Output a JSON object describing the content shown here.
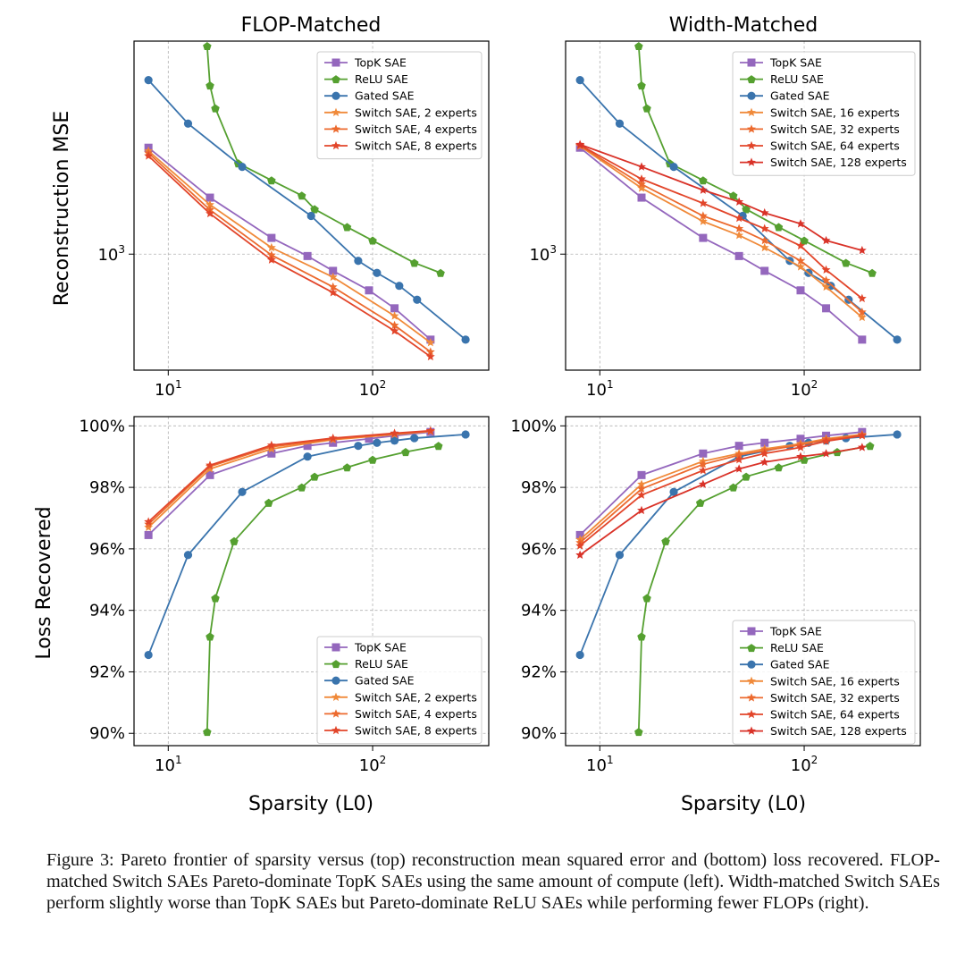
{
  "figure": {
    "panels": [
      {
        "id": "flop-mse",
        "title": "FLOP-Matched"
      },
      {
        "id": "width-mse",
        "title": "Width-Matched"
      }
    ],
    "ylabel_top": "Reconstruction MSE",
    "ylabel_bottom": "Loss Recovered",
    "xlabel": "Sparsity (L0)",
    "x_ticks": [
      {
        "base": "10",
        "exp": "1",
        "value": 10
      },
      {
        "base": "10",
        "exp": "2",
        "value": 100
      }
    ],
    "mse_tick": {
      "base": "10",
      "exp": "3",
      "value": 1000
    },
    "loss_ticks": [
      "90%",
      "92%",
      "94%",
      "96%",
      "98%",
      "100%"
    ]
  },
  "caption": "Figure 3: Pareto frontier of sparsity versus (top) reconstruction mean squared error and (bottom) loss recovered. FLOP-matched Switch SAEs Pareto-dominate TopK SAEs using the same amount of compute (left). Width-matched Switch SAEs perform slightly worse than TopK SAEs but Pareto-dominate ReLU SAEs while performing fewer FLOPs (right).",
  "colors": {
    "topk": "#9467bd",
    "relu": "#55a030",
    "gated": "#3a74ad",
    "switch_light": "#f08a3a",
    "switch_mid": "#ec6a2e",
    "switch_dark": "#e2452a",
    "switch_red": "#d93228"
  },
  "chart_data": [
    {
      "type": "line",
      "title": "FLOP-Matched",
      "xlabel": "",
      "ylabel": "Reconstruction MSE",
      "xscale": "log",
      "yscale": "log",
      "xlim": [
        6.8,
        370
      ],
      "ylim": [
        540,
        3100
      ],
      "legend": "top-right",
      "series": [
        {
          "name": "TopK SAE",
          "color": "topk",
          "marker": "square",
          "x": [
            8,
            16,
            32,
            48,
            64,
            96,
            128,
            192
          ],
          "y": [
            1760,
            1350,
            1090,
            990,
            915,
            825,
            750,
            635
          ]
        },
        {
          "name": "ReLU SAE",
          "color": "relu",
          "marker": "pentagon",
          "x": [
            15.5,
            16,
            17,
            22,
            32,
            45,
            52,
            75,
            100,
            160,
            215
          ],
          "y": [
            3020,
            2450,
            2170,
            1620,
            1480,
            1365,
            1270,
            1155,
            1075,
            955,
            905
          ]
        },
        {
          "name": "Gated SAE",
          "color": "gated",
          "marker": "circle",
          "x": [
            8,
            12.5,
            23,
            50,
            85,
            105,
            135,
            165,
            285
          ],
          "y": [
            2520,
            2000,
            1590,
            1225,
            965,
            905,
            845,
            785,
            635
          ]
        },
        {
          "name": "Switch SAE, 2 experts",
          "color": "switch_light",
          "marker": "star",
          "x": [
            8,
            16,
            32,
            64,
            128,
            192
          ],
          "y": [
            1730,
            1300,
            1035,
            885,
            720,
            625
          ]
        },
        {
          "name": "Switch SAE, 4 experts",
          "color": "switch_mid",
          "marker": "star",
          "x": [
            8,
            16,
            32,
            64,
            128,
            192
          ],
          "y": [
            1710,
            1265,
            995,
            840,
            685,
            595
          ]
        },
        {
          "name": "Switch SAE, 8 experts",
          "color": "switch_dark",
          "marker": "star",
          "x": [
            8,
            16,
            32,
            64,
            128,
            192
          ],
          "y": [
            1685,
            1240,
            970,
            815,
            665,
            580
          ]
        }
      ]
    },
    {
      "type": "line",
      "title": "Width-Matched",
      "xlabel": "",
      "ylabel": "",
      "xscale": "log",
      "yscale": "log",
      "xlim": [
        6.8,
        370
      ],
      "ylim": [
        540,
        3100
      ],
      "legend": "top-right",
      "series": [
        {
          "name": "TopK SAE",
          "color": "topk",
          "marker": "square",
          "x": [
            8,
            16,
            32,
            48,
            64,
            96,
            128,
            192
          ],
          "y": [
            1760,
            1350,
            1090,
            990,
            915,
            825,
            750,
            635
          ]
        },
        {
          "name": "ReLU SAE",
          "color": "relu",
          "marker": "pentagon",
          "x": [
            15.5,
            16,
            17,
            22,
            32,
            45,
            52,
            75,
            100,
            160,
            215
          ],
          "y": [
            3020,
            2450,
            2170,
            1620,
            1480,
            1365,
            1270,
            1155,
            1075,
            955,
            905
          ]
        },
        {
          "name": "Gated SAE",
          "color": "gated",
          "marker": "circle",
          "x": [
            8,
            12.5,
            23,
            50,
            85,
            105,
            135,
            165,
            285
          ],
          "y": [
            2520,
            2000,
            1590,
            1225,
            965,
            905,
            845,
            785,
            635
          ]
        },
        {
          "name": "Switch SAE, 16 experts",
          "color": "switch_light",
          "marker": "star",
          "x": [
            8,
            16,
            32,
            48,
            64,
            96,
            128,
            192
          ],
          "y": [
            1775,
            1420,
            1190,
            1105,
            1035,
            935,
            840,
            715
          ]
        },
        {
          "name": "Switch SAE, 32 experts",
          "color": "switch_mid",
          "marker": "star",
          "x": [
            8,
            16,
            32,
            48,
            64,
            96,
            128,
            192
          ],
          "y": [
            1780,
            1450,
            1225,
            1145,
            1075,
            965,
            870,
            735
          ]
        },
        {
          "name": "Switch SAE, 64 experts",
          "color": "switch_dark",
          "marker": "star",
          "x": [
            8,
            16,
            32,
            48,
            64,
            96,
            128,
            192
          ],
          "y": [
            1785,
            1490,
            1310,
            1210,
            1145,
            1045,
            920,
            790
          ]
        },
        {
          "name": "Switch SAE, 128 experts",
          "color": "switch_red",
          "marker": "star",
          "x": [
            8,
            16,
            32,
            48,
            64,
            96,
            128,
            192
          ],
          "y": [
            1790,
            1590,
            1405,
            1320,
            1245,
            1175,
            1075,
            1020
          ]
        }
      ]
    },
    {
      "type": "line",
      "title": "",
      "xlabel": "Sparsity (L0)",
      "ylabel": "Loss Recovered",
      "xscale": "log",
      "yscale": "linear",
      "xlim": [
        6.8,
        370
      ],
      "ylim": [
        89.6,
        100.3
      ],
      "legend": "bottom-right",
      "series": [
        {
          "name": "TopK SAE",
          "color": "topk",
          "marker": "square",
          "x": [
            8,
            16,
            32,
            48,
            64,
            96,
            128,
            192
          ],
          "y": [
            96.45,
            98.4,
            99.1,
            99.35,
            99.45,
            99.58,
            99.68,
            99.8
          ]
        },
        {
          "name": "ReLU SAE",
          "color": "relu",
          "marker": "pentagon",
          "x": [
            15.5,
            16,
            17,
            21,
            31,
            45,
            52,
            75,
            100,
            145,
            210
          ],
          "y": [
            90.05,
            93.15,
            94.4,
            96.25,
            97.5,
            98.0,
            98.35,
            98.65,
            98.9,
            99.15,
            99.35
          ]
        },
        {
          "name": "Gated SAE",
          "color": "gated",
          "marker": "circle",
          "x": [
            8,
            12.5,
            23,
            48,
            85,
            105,
            128,
            160,
            285
          ],
          "y": [
            92.55,
            95.8,
            97.85,
            99.0,
            99.35,
            99.45,
            99.52,
            99.6,
            99.72
          ]
        },
        {
          "name": "Switch SAE, 2 experts",
          "color": "switch_light",
          "marker": "star",
          "x": [
            8,
            16,
            32,
            64,
            128,
            192
          ],
          "y": [
            96.7,
            98.6,
            99.25,
            99.55,
            99.72,
            99.82
          ]
        },
        {
          "name": "Switch SAE, 4 experts",
          "color": "switch_mid",
          "marker": "star",
          "x": [
            8,
            16,
            32,
            64,
            128,
            192
          ],
          "y": [
            96.8,
            98.68,
            99.32,
            99.57,
            99.74,
            99.83
          ]
        },
        {
          "name": "Switch SAE, 8 experts",
          "color": "switch_dark",
          "marker": "star",
          "x": [
            8,
            16,
            32,
            64,
            128,
            192
          ],
          "y": [
            96.88,
            98.72,
            99.37,
            99.6,
            99.76,
            99.84
          ]
        }
      ]
    },
    {
      "type": "line",
      "title": "",
      "xlabel": "Sparsity (L0)",
      "ylabel": "",
      "xscale": "log",
      "yscale": "linear",
      "xlim": [
        6.8,
        370
      ],
      "ylim": [
        89.6,
        100.3
      ],
      "legend": "bottom-right",
      "series": [
        {
          "name": "TopK SAE",
          "color": "topk",
          "marker": "square",
          "x": [
            8,
            16,
            32,
            48,
            64,
            96,
            128,
            192
          ],
          "y": [
            96.45,
            98.4,
            99.1,
            99.35,
            99.45,
            99.58,
            99.68,
            99.8
          ]
        },
        {
          "name": "ReLU SAE",
          "color": "relu",
          "marker": "pentagon",
          "x": [
            15.5,
            16,
            17,
            21,
            31,
            45,
            52,
            75,
            100,
            145,
            210
          ],
          "y": [
            90.05,
            93.15,
            94.4,
            96.25,
            97.5,
            98.0,
            98.35,
            98.65,
            98.9,
            99.15,
            99.35
          ]
        },
        {
          "name": "Gated SAE",
          "color": "gated",
          "marker": "circle",
          "x": [
            8,
            12.5,
            23,
            48,
            85,
            105,
            128,
            160,
            285
          ],
          "y": [
            92.55,
            95.8,
            97.85,
            99.0,
            99.35,
            99.45,
            99.52,
            99.6,
            99.72
          ]
        },
        {
          "name": "Switch SAE, 16 experts",
          "color": "switch_light",
          "marker": "star",
          "x": [
            8,
            16,
            32,
            48,
            64,
            96,
            128,
            192
          ],
          "y": [
            96.3,
            98.1,
            98.85,
            99.1,
            99.25,
            99.42,
            99.58,
            99.72
          ]
        },
        {
          "name": "Switch SAE, 32 experts",
          "color": "switch_mid",
          "marker": "star",
          "x": [
            8,
            16,
            32,
            48,
            64,
            96,
            128,
            192
          ],
          "y": [
            96.2,
            97.95,
            98.75,
            99.05,
            99.2,
            99.38,
            99.55,
            99.7
          ]
        },
        {
          "name": "Switch SAE, 64 experts",
          "color": "switch_dark",
          "marker": "star",
          "x": [
            8,
            16,
            32,
            48,
            64,
            96,
            128,
            192
          ],
          "y": [
            96.1,
            97.75,
            98.55,
            98.9,
            99.1,
            99.3,
            99.5,
            99.68
          ]
        },
        {
          "name": "Switch SAE, 128 experts",
          "color": "switch_red",
          "marker": "star",
          "x": [
            8,
            16,
            32,
            48,
            64,
            96,
            128,
            192
          ],
          "y": [
            95.8,
            97.25,
            98.1,
            98.6,
            98.82,
            99.0,
            99.1,
            99.3
          ]
        }
      ]
    }
  ]
}
